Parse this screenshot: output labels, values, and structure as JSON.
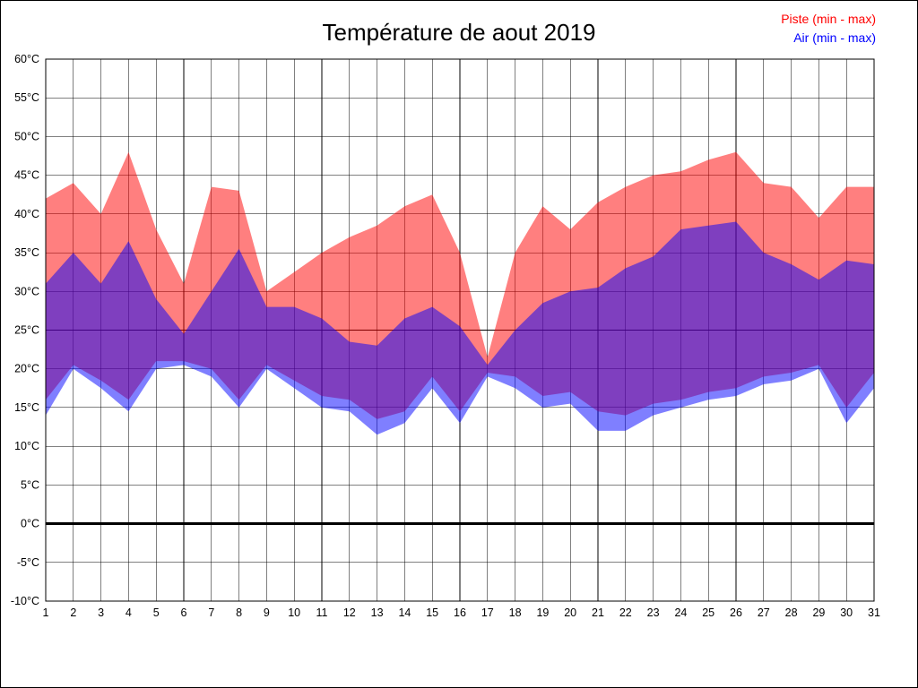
{
  "page": {
    "title": "Température de aout 2019",
    "legend": [
      {
        "label": "Piste (min - max)",
        "color": "#ff0000"
      },
      {
        "label": "Air (min - max)",
        "color": "#0000ff"
      }
    ]
  },
  "chart_data": {
    "type": "area",
    "title": "Température de aout 2019",
    "xlabel": "",
    "ylabel": "",
    "ylim": [
      -10,
      60
    ],
    "ystep": 5,
    "grid": true,
    "legend_position": "top-right",
    "yticks": [
      "60°C",
      "55°C",
      "50°C",
      "45°C",
      "40°C",
      "35°C",
      "30°C",
      "25°C",
      "20°C",
      "15°C",
      "10°C",
      "5°C",
      "0°C",
      "-5°C",
      "-10°C"
    ],
    "xticks": [
      "1",
      "2",
      "3",
      "4",
      "5",
      "6",
      "7",
      "8",
      "9",
      "10",
      "11",
      "12",
      "13",
      "14",
      "15",
      "16",
      "17",
      "18",
      "19",
      "20",
      "21",
      "22",
      "23",
      "24",
      "25",
      "26",
      "27",
      "28",
      "29",
      "30",
      "31"
    ],
    "zero_line": {
      "value": 0,
      "color": "#000000",
      "width": 3
    },
    "series": [
      {
        "name": "Piste (min - max)",
        "color": "#ff0000",
        "opacity": 0.5,
        "max": [
          42,
          44,
          40,
          48,
          38,
          31,
          43.5,
          43,
          30,
          32.5,
          35,
          37,
          38.5,
          41,
          42.5,
          35,
          21.5,
          35,
          41,
          38,
          41.5,
          43.5,
          45,
          45.5,
          47,
          48,
          44,
          43.5,
          39.5,
          43.5,
          43.5
        ],
        "min": [
          16,
          20.5,
          18.5,
          16,
          21,
          21,
          20,
          16,
          20.5,
          18.5,
          16.5,
          16,
          13.5,
          14.5,
          19,
          14.5,
          19.5,
          19,
          16.5,
          17,
          14.5,
          14,
          15.5,
          16,
          17,
          17.5,
          19,
          19.5,
          20.5,
          15,
          19.5
        ]
      },
      {
        "name": "Air (min - max)",
        "color": "#0000ff",
        "opacity": 0.5,
        "max": [
          31,
          35,
          31,
          36.5,
          29,
          24.5,
          30,
          35.5,
          28,
          28,
          26.5,
          23.5,
          23,
          26.5,
          28,
          25.5,
          20.5,
          25,
          28.5,
          30,
          30.5,
          33,
          34.5,
          38,
          38.5,
          39,
          35,
          33.5,
          31.5,
          34,
          33.5
        ],
        "min": [
          14,
          20,
          17.5,
          14.5,
          20,
          20.5,
          19,
          15,
          20,
          17.5,
          15,
          14.5,
          11.5,
          13,
          17.5,
          13,
          19,
          17.5,
          15,
          15.5,
          12,
          12,
          14,
          15,
          16,
          16.5,
          18,
          18.5,
          20,
          13,
          17.5
        ]
      }
    ]
  }
}
